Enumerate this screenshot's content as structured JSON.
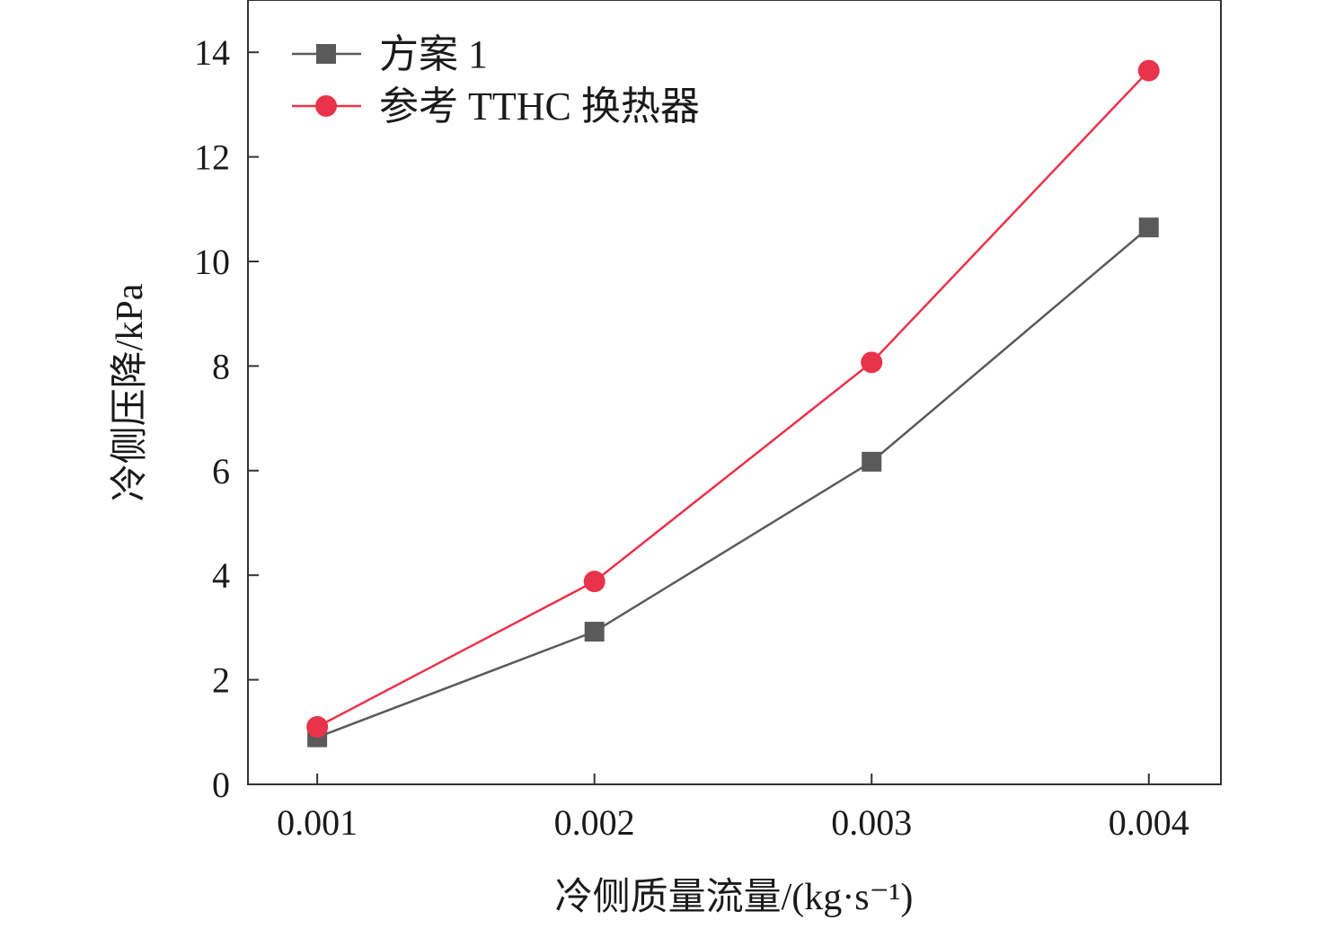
{
  "chart_data": {
    "type": "line",
    "xlabel": "冷侧质量流量/(kg·s⁻¹)",
    "ylabel": "冷侧压降/kPa",
    "x": [
      0.001,
      0.002,
      0.003,
      0.004
    ],
    "x_tick_labels": [
      "0.001",
      "0.002",
      "0.003",
      "0.004"
    ],
    "xlim": [
      0.00075,
      0.00426
    ],
    "ylim": [
      0,
      15
    ],
    "y_ticks": [
      0,
      2,
      4,
      6,
      8,
      10,
      12,
      14
    ],
    "grid": false,
    "legend_position": "top-left",
    "series": [
      {
        "name": "方案 1",
        "marker": "square",
        "color": "#5a5a5a",
        "values": [
          0.9,
          2.92,
          6.17,
          10.65
        ]
      },
      {
        "name": "参考 TTHC 换热器",
        "marker": "circle",
        "color": "#e8334a",
        "values": [
          1.1,
          3.88,
          8.07,
          13.65
        ]
      }
    ]
  }
}
